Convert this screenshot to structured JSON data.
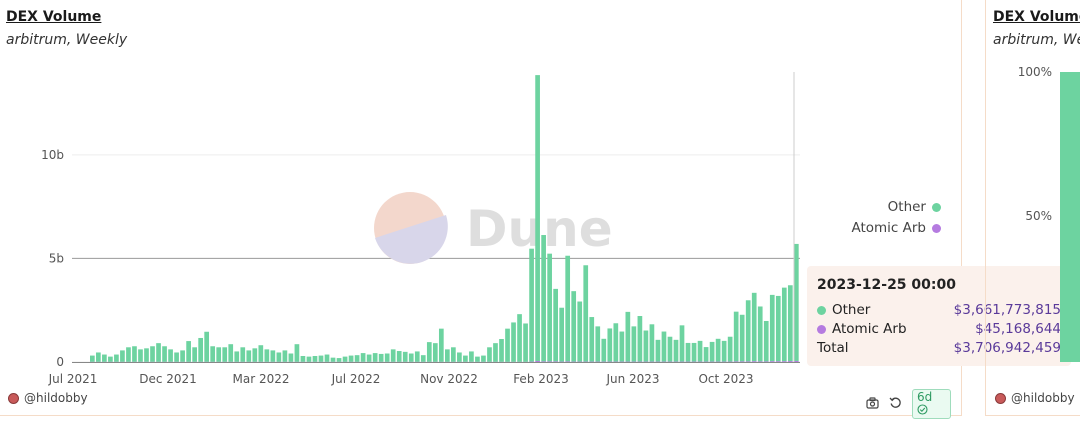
{
  "panels": {
    "main": {
      "title": "DEX Volume",
      "subtitle": "arbitrum, Weekly",
      "author": "@hildobby",
      "watermark": "Dune",
      "freshness_badge": "6d",
      "icons": [
        "camera-icon",
        "refresh-icon",
        "check-circle-icon"
      ]
    },
    "right": {
      "title": "DEX Volume",
      "subtitle": "arbitrum, Wee",
      "author": "@hildobby",
      "y_ticks": [
        "100%",
        "50%"
      ]
    }
  },
  "legend": [
    {
      "name": "Other",
      "color": "#6dd3a0"
    },
    {
      "name": "Atomic Arb",
      "color": "#b57be0"
    }
  ],
  "tooltip": {
    "date": "2023-12-25 00:00",
    "rows": [
      {
        "name": "Other",
        "value": "$3,661,773,815",
        "color": "#6dd3a0"
      },
      {
        "name": "Atomic Arb",
        "value": "$45,168,644",
        "color": "#b57be0"
      }
    ],
    "total_label": "Total",
    "total_value": "$3,706,942,459"
  },
  "chart_data": {
    "type": "bar",
    "stacked": true,
    "x_tick_labels": [
      "Jul 2021",
      "Dec 2021",
      "Mar 2022",
      "Jul 2022",
      "Nov 2022",
      "Feb 2023",
      "Jun 2023",
      "Oct 2023"
    ],
    "y_tick_labels": [
      "0",
      "5b",
      "10b"
    ],
    "y_ticks": [
      0,
      5,
      10
    ],
    "ylim": [
      0,
      14
    ],
    "y_unit": "billions USD",
    "reference_line": 5,
    "series": [
      {
        "name": "Other",
        "color": "#6dd3a0",
        "values": [
          0.3,
          0.45,
          0.35,
          0.25,
          0.35,
          0.55,
          0.7,
          0.75,
          0.6,
          0.65,
          0.75,
          0.9,
          0.75,
          0.6,
          0.45,
          0.55,
          1.0,
          0.7,
          1.15,
          1.45,
          0.75,
          0.7,
          0.7,
          0.85,
          0.5,
          0.7,
          0.55,
          0.65,
          0.8,
          0.6,
          0.55,
          0.45,
          0.55,
          0.4,
          0.85,
          0.28,
          0.25,
          0.28,
          0.3,
          0.35,
          0.2,
          0.18,
          0.25,
          0.3,
          0.32,
          0.42,
          0.35,
          0.42,
          0.38,
          0.4,
          0.6,
          0.52,
          0.48,
          0.4,
          0.5,
          0.32,
          0.95,
          0.9,
          1.6,
          0.6,
          0.7,
          0.45,
          0.3,
          0.5,
          0.25,
          0.3,
          0.7,
          0.9,
          1.1,
          1.6,
          1.9,
          2.3,
          1.85,
          5.45,
          13.8,
          6.1,
          5.2,
          3.5,
          2.6,
          5.1,
          3.4,
          2.9,
          4.65,
          2.15,
          1.7,
          1.1,
          1.6,
          1.85,
          1.45,
          2.4,
          1.7,
          2.2,
          1.5,
          1.8,
          1.05,
          1.45,
          1.2,
          1.05,
          1.75,
          0.9,
          0.9,
          1.0,
          0.7,
          0.95,
          1.1,
          1.0,
          1.2,
          2.4,
          2.25,
          2.95,
          3.3,
          2.65,
          1.95,
          3.2,
          3.15,
          3.55,
          3.66,
          5.65
        ]
      },
      {
        "name": "Atomic Arb",
        "color": "#b57be0",
        "values": [
          0.01,
          0.01,
          0.01,
          0.01,
          0.01,
          0.01,
          0.01,
          0.01,
          0.01,
          0.01,
          0.01,
          0.01,
          0.01,
          0.01,
          0.01,
          0.01,
          0.01,
          0.01,
          0.01,
          0.01,
          0.01,
          0.01,
          0.01,
          0.01,
          0.01,
          0.01,
          0.01,
          0.01,
          0.01,
          0.01,
          0.01,
          0.01,
          0.01,
          0.01,
          0.01,
          0.01,
          0.01,
          0.01,
          0.01,
          0.01,
          0.01,
          0.01,
          0.01,
          0.01,
          0.01,
          0.01,
          0.01,
          0.01,
          0.01,
          0.01,
          0.01,
          0.01,
          0.01,
          0.01,
          0.01,
          0.01,
          0.01,
          0.01,
          0.01,
          0.01,
          0.01,
          0.01,
          0.01,
          0.01,
          0.01,
          0.01,
          0.01,
          0.01,
          0.01,
          0.01,
          0.01,
          0.01,
          0.01,
          0.02,
          0.05,
          0.03,
          0.03,
          0.03,
          0.02,
          0.03,
          0.02,
          0.02,
          0.02,
          0.02,
          0.02,
          0.02,
          0.02,
          0.02,
          0.02,
          0.02,
          0.02,
          0.02,
          0.02,
          0.02,
          0.02,
          0.02,
          0.02,
          0.02,
          0.02,
          0.02,
          0.02,
          0.02,
          0.02,
          0.02,
          0.02,
          0.02,
          0.02,
          0.03,
          0.03,
          0.03,
          0.04,
          0.03,
          0.03,
          0.04,
          0.04,
          0.04,
          0.045,
          0.05
        ]
      }
    ]
  }
}
